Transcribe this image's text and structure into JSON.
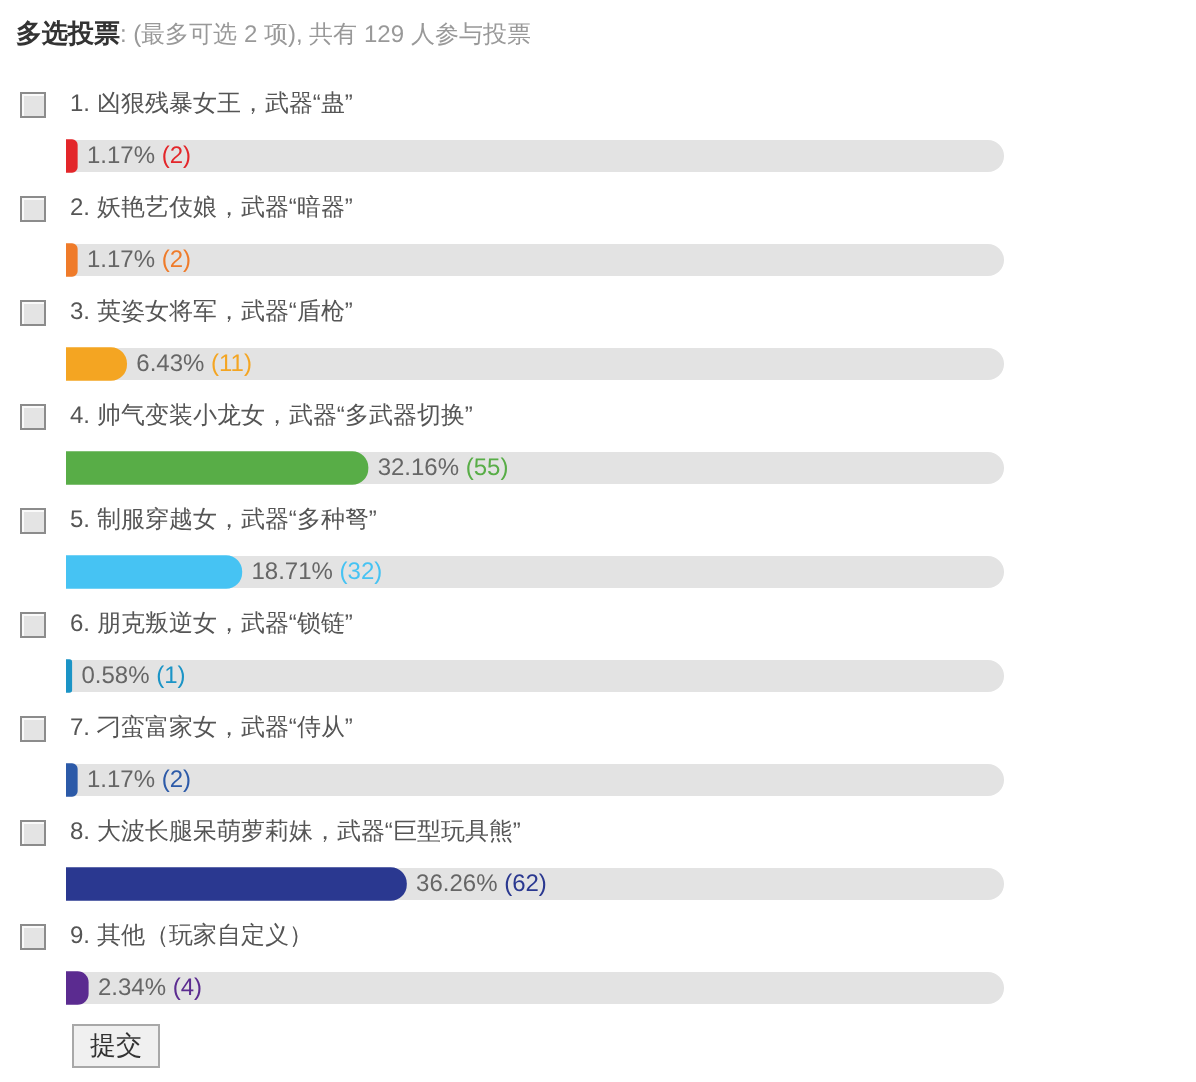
{
  "chart_data": {
    "type": "bar",
    "orientation": "horizontal",
    "title": "多选投票",
    "subtitle": ": (最多可选 2 项), 共有 129 人参与投票",
    "categories": [
      "1. 凶狠残暴女王，武器“蛊”",
      "2. 妖艳艺伎娘，武器“暗器”",
      "3. 英姿女将军，武器“盾枪”",
      "4. 帅气变装小龙女，武器“多武器切换”",
      "5. 制服穿越女，武器“多种弩”",
      "6. 朋克叛逆女，武器“锁链”",
      "7. 刁蛮富家女，武器“侍从”",
      "8. 大波长腿呆萌萝莉妹，武器“巨型玩具熊”",
      "9. 其他（玩家自定义）"
    ],
    "values": [
      1.17,
      1.17,
      6.43,
      32.16,
      18.71,
      0.58,
      1.17,
      36.26,
      2.34
    ],
    "colors": [
      "#e3262a",
      "#ef7b2a",
      "#f4a522",
      "#58ad47",
      "#46c3f3",
      "#1b94c6",
      "#2c5aa8",
      "#2a3890",
      "#5b2b90"
    ],
    "value_labels": [
      "1.17% (2)",
      "1.17% (2)",
      "6.43% (11)",
      "32.16% (55)",
      "18.71% (32)",
      "0.58% (1)",
      "1.17% (2)",
      "36.26% (62)",
      "2.34% (4)"
    ],
    "xlim": [
      0,
      100
    ],
    "tick_labels": "y",
    "annotations": [
      "提交"
    ]
  }
}
